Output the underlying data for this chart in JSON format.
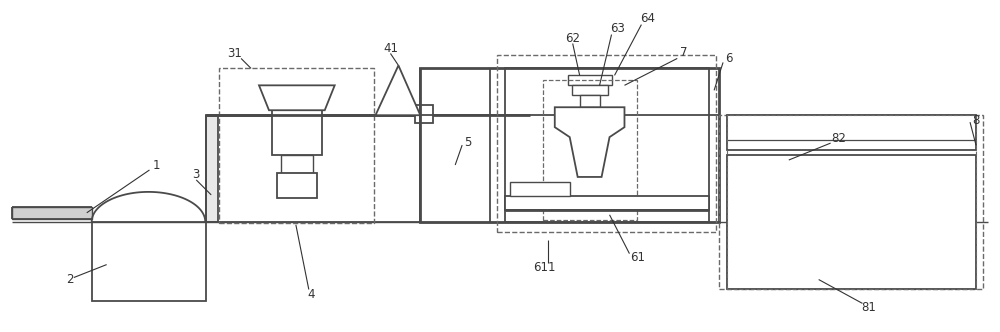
{
  "bg_color": "#ffffff",
  "line_color": "#4a4a4a",
  "dashed_color": "#6a6a6a",
  "label_color": "#333333",
  "fig_width": 10.0,
  "fig_height": 3.32,
  "dpi": 100
}
